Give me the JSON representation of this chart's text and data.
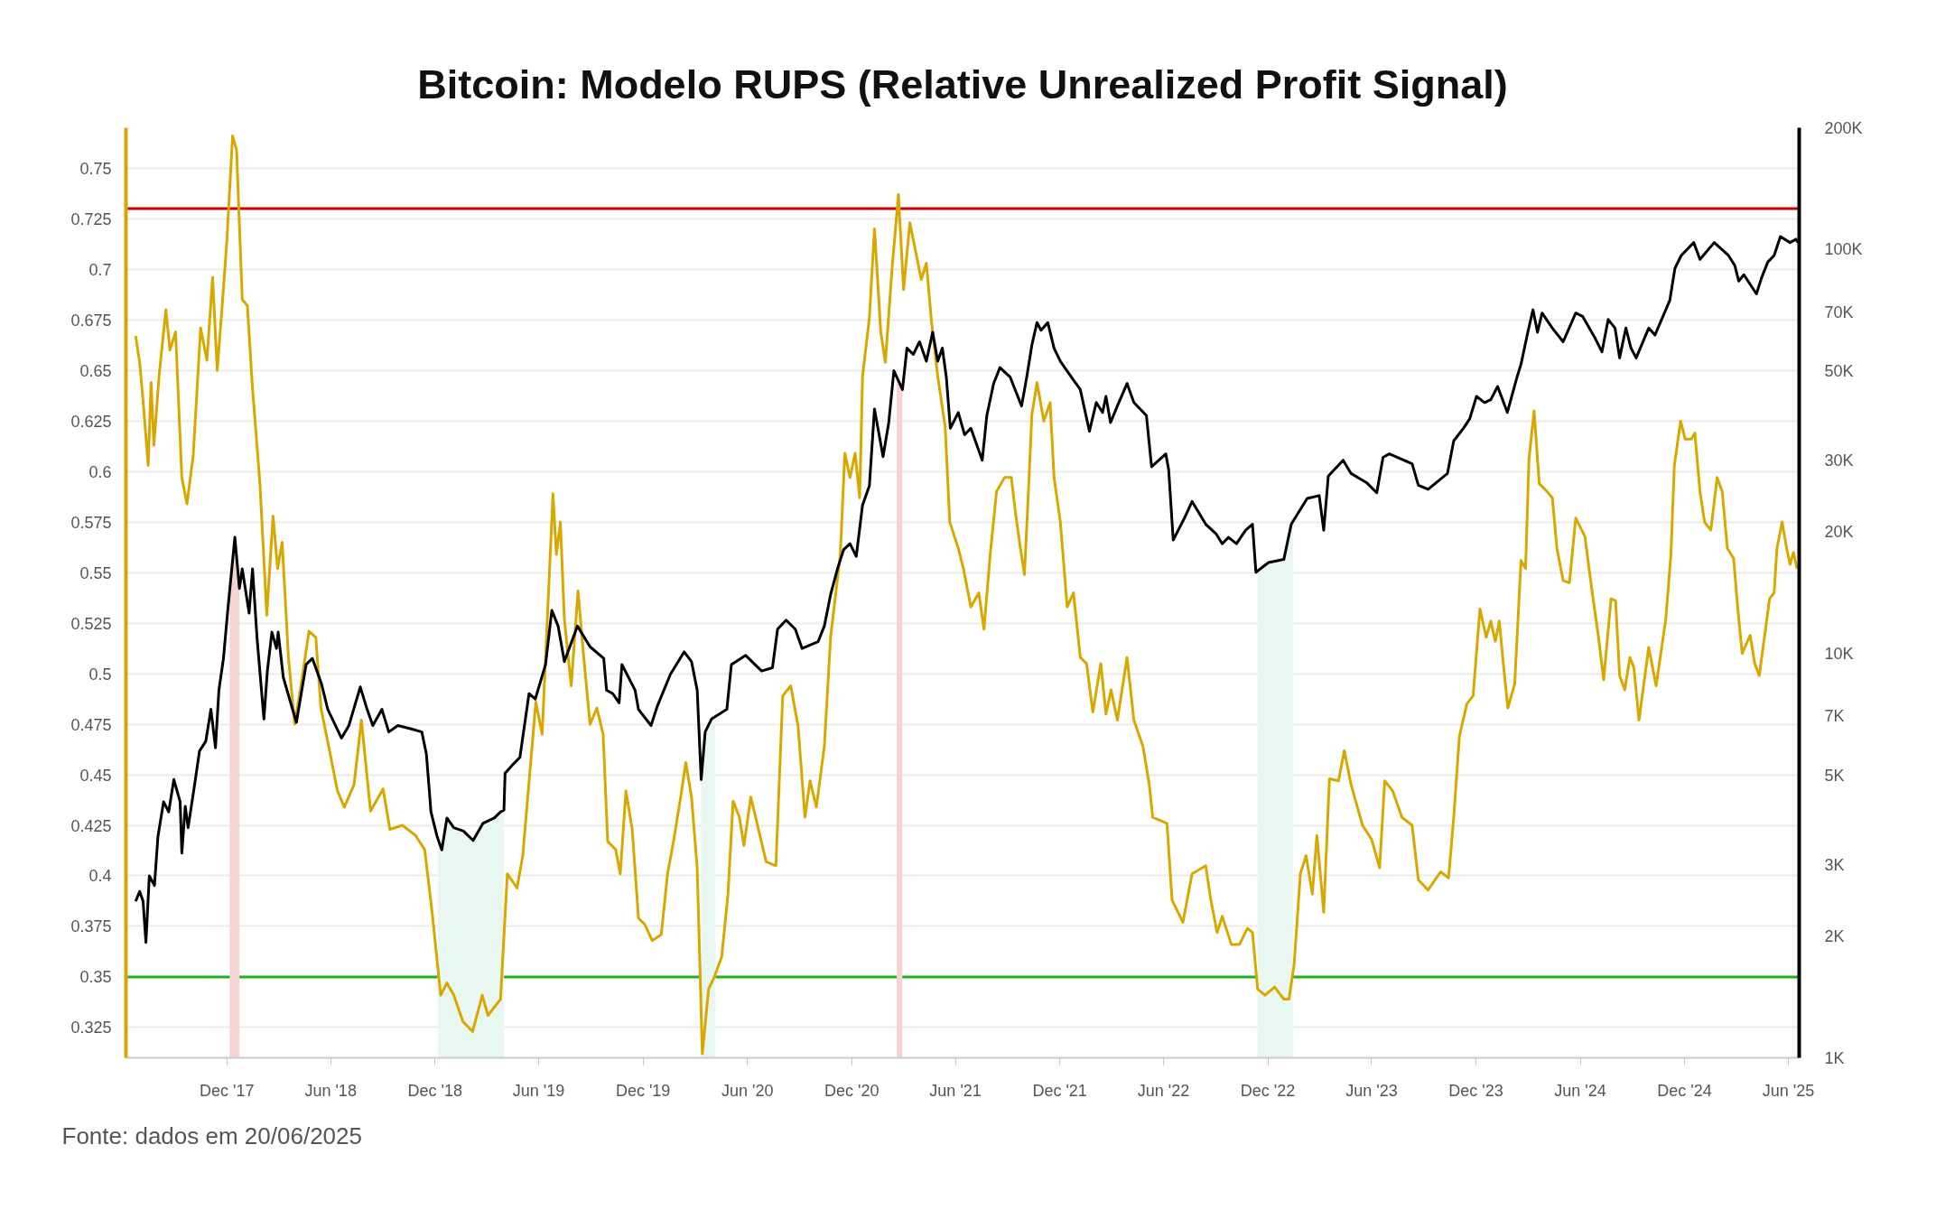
{
  "chart_data": {
    "type": "line",
    "title": "Bitcoin: Modelo RUPS (Relative Unrealized Profit Signal)",
    "annotations": [
      "Fonte: dados em 20/06/2025"
    ],
    "xlim": [
      "2017-06-07",
      "2025-06-20"
    ],
    "xticks": [
      {
        "value": "2017-12-01",
        "label": "Dec '17"
      },
      {
        "value": "2018-06-01",
        "label": "Jun '18"
      },
      {
        "value": "2018-12-01",
        "label": "Dec '18"
      },
      {
        "value": "2019-06-01",
        "label": "Jun '19"
      },
      {
        "value": "2019-12-01",
        "label": "Dec '19"
      },
      {
        "value": "2020-06-01",
        "label": "Jun '20"
      },
      {
        "value": "2020-12-01",
        "label": "Dec '20"
      },
      {
        "value": "2021-06-01",
        "label": "Jun '21"
      },
      {
        "value": "2021-12-01",
        "label": "Dec '21"
      },
      {
        "value": "2022-06-01",
        "label": "Jun '22"
      },
      {
        "value": "2022-12-01",
        "label": "Dec '22"
      },
      {
        "value": "2023-06-01",
        "label": "Jun '23"
      },
      {
        "value": "2023-12-01",
        "label": "Dec '23"
      },
      {
        "value": "2024-06-01",
        "label": "Jun '24"
      },
      {
        "value": "2024-12-01",
        "label": "Dec '24"
      },
      {
        "value": "2025-06-01",
        "label": "Jun '25"
      }
    ],
    "ylim": [
      0.31,
      0.77
    ],
    "yticks": [
      0.325,
      0.35,
      0.375,
      0.4,
      0.425,
      0.45,
      0.475,
      0.5,
      0.525,
      0.55,
      0.575,
      0.6,
      0.625,
      0.65,
      0.675,
      0.7,
      0.725,
      0.75
    ],
    "y2lim": [
      1000,
      200000
    ],
    "y2ticks": [
      {
        "value": 1000,
        "label": "1K"
      },
      {
        "value": 2000,
        "label": "2K"
      },
      {
        "value": 3000,
        "label": "3K"
      },
      {
        "value": 5000,
        "label": "5K"
      },
      {
        "value": 7000,
        "label": "7K"
      },
      {
        "value": 10000,
        "label": "10K"
      },
      {
        "value": 20000,
        "label": "20K"
      },
      {
        "value": 30000,
        "label": "30K"
      },
      {
        "value": 50000,
        "label": "50K"
      },
      {
        "value": 70000,
        "label": "70K"
      },
      {
        "value": 100000,
        "label": "100K"
      },
      {
        "value": 200000,
        "label": "200K"
      }
    ],
    "log": "y2",
    "grid": "y",
    "ref_lines": [
      {
        "axis": "y",
        "value": 0.73,
        "color": "#cc0000"
      },
      {
        "axis": "y",
        "value": 0.35,
        "color": "#22b022"
      }
    ],
    "bands": [
      {
        "axis": "x",
        "from": "2017-12-06",
        "to": "2017-12-23",
        "color": "#f5d3d3"
      },
      {
        "axis": "x",
        "from": "2018-12-06",
        "to": "2019-04-01",
        "color": "#e8f7ef"
      },
      {
        "axis": "x",
        "from": "2020-03-12",
        "to": "2020-04-06",
        "color": "#e8f7ef"
      },
      {
        "axis": "x",
        "from": "2021-02-18",
        "to": "2021-02-28",
        "color": "#f5d3d3"
      },
      {
        "axis": "x",
        "from": "2022-11-13",
        "to": "2023-01-14",
        "color": "#e8f7ef"
      }
    ],
    "series": [
      {
        "color": "#d9a800",
        "x": [
          "2017-06-24",
          "2017-07-01",
          "2017-07-07",
          "2017-07-16",
          "2017-07-21",
          "2017-07-26",
          "2017-08-04",
          "2017-08-16",
          "2017-08-23",
          "2017-09-02",
          "2017-09-13",
          "2017-09-22",
          "2017-10-03",
          "2017-10-16",
          "2017-10-27",
          "2017-11-06",
          "2017-11-14",
          "2017-11-22",
          "2017-12-01",
          "2017-12-11",
          "2017-12-18",
          "2017-12-28",
          "2018-01-06",
          "2018-01-15",
          "2018-01-28",
          "2018-02-09",
          "2018-02-20",
          "2018-02-28",
          "2018-03-08",
          "2018-03-19",
          "2018-03-30",
          "2018-04-11",
          "2018-04-24",
          "2018-05-06",
          "2018-05-15",
          "2018-05-30",
          "2018-06-13",
          "2018-06-25",
          "2018-07-12",
          "2018-07-25",
          "2018-08-10",
          "2018-09-01",
          "2018-09-13",
          "2018-10-05",
          "2018-10-28",
          "2018-11-13",
          "2018-11-26",
          "2018-12-11",
          "2018-12-22",
          "2019-01-03",
          "2019-01-19",
          "2019-02-05",
          "2019-02-22",
          "2019-03-04",
          "2019-03-26",
          "2019-04-07",
          "2019-04-24",
          "2019-05-04",
          "2019-05-27",
          "2019-06-07",
          "2019-06-26",
          "2019-07-02",
          "2019-07-09",
          "2019-07-16",
          "2019-07-28",
          "2019-08-09",
          "2019-08-19",
          "2019-08-30",
          "2019-09-11",
          "2019-09-22",
          "2019-09-30",
          "2019-10-14",
          "2019-10-22",
          "2019-11-01",
          "2019-11-12",
          "2019-11-23",
          "2019-12-04",
          "2019-12-17",
          "2020-01-02",
          "2020-01-13",
          "2020-01-24",
          "2020-02-05",
          "2020-02-14",
          "2020-02-24",
          "2020-03-05",
          "2020-03-14",
          "2020-03-25",
          "2020-04-04",
          "2020-04-17",
          "2020-04-28",
          "2020-05-07",
          "2020-05-18",
          "2020-05-26",
          "2020-06-07",
          "2020-06-23",
          "2020-07-04",
          "2020-07-21",
          "2020-08-02",
          "2020-08-16",
          "2020-08-29",
          "2020-09-10",
          "2020-09-19",
          "2020-09-30",
          "2020-10-14",
          "2020-10-25",
          "2020-11-11",
          "2020-11-19",
          "2020-11-28",
          "2020-12-07",
          "2020-12-15",
          "2020-12-20",
          "2021-01-01",
          "2021-01-10",
          "2021-01-21",
          "2021-01-29",
          "2021-02-10",
          "2021-02-21",
          "2021-03-02",
          "2021-03-13",
          "2021-04-02",
          "2021-04-11",
          "2021-04-20",
          "2021-05-01",
          "2021-05-14",
          "2021-05-22",
          "2021-06-06",
          "2021-06-15",
          "2021-06-28",
          "2021-07-12",
          "2021-07-21",
          "2021-08-01",
          "2021-08-12",
          "2021-08-26",
          "2021-09-07",
          "2021-09-15",
          "2021-09-23",
          "2021-09-30",
          "2021-10-07",
          "2021-10-13",
          "2021-10-22",
          "2021-11-03",
          "2021-11-14",
          "2021-11-21",
          "2021-12-02",
          "2021-12-14",
          "2021-12-25",
          "2022-01-06",
          "2022-01-17",
          "2022-01-28",
          "2022-02-11",
          "2022-02-20",
          "2022-03-01",
          "2022-03-12",
          "2022-03-29",
          "2022-04-10",
          "2022-04-26",
          "2022-05-07",
          "2022-05-13",
          "2022-06-07",
          "2022-06-16",
          "2022-07-05",
          "2022-07-21",
          "2022-08-14",
          "2022-08-23",
          "2022-09-03",
          "2022-09-12",
          "2022-09-28",
          "2022-10-12",
          "2022-10-26",
          "2022-11-04",
          "2022-11-13",
          "2022-11-26",
          "2022-12-13",
          "2022-12-29",
          "2023-01-07",
          "2023-01-16",
          "2023-01-27",
          "2023-02-06",
          "2023-02-17",
          "2023-02-25",
          "2023-03-09",
          "2023-03-19",
          "2023-04-04",
          "2023-04-14",
          "2023-04-26",
          "2023-05-16",
          "2023-06-01",
          "2023-06-15",
          "2023-06-24",
          "2023-07-08",
          "2023-07-24",
          "2023-08-11",
          "2023-08-22",
          "2023-09-08",
          "2023-09-30",
          "2023-10-14",
          "2023-10-23",
          "2023-11-02",
          "2023-11-15",
          "2023-11-26",
          "2023-12-08",
          "2023-12-19",
          "2023-12-27",
          "2024-01-04",
          "2024-01-11",
          "2024-01-19",
          "2024-01-26",
          "2024-02-07",
          "2024-02-18",
          "2024-02-26",
          "2024-03-03",
          "2024-03-12",
          "2024-03-21",
          "2024-04-04",
          "2024-04-13",
          "2024-04-21",
          "2024-05-02",
          "2024-05-13",
          "2024-05-24",
          "2024-06-09",
          "2024-06-22",
          "2024-07-03",
          "2024-07-12",
          "2024-07-25",
          "2024-08-02",
          "2024-08-09",
          "2024-08-18",
          "2024-08-27",
          "2024-09-03",
          "2024-09-12",
          "2024-09-29",
          "2024-10-12",
          "2024-10-29",
          "2024-11-07",
          "2024-11-13",
          "2024-11-24",
          "2024-12-02",
          "2024-12-13",
          "2024-12-19",
          "2024-12-28",
          "2025-01-05",
          "2025-01-16",
          "2025-01-27",
          "2025-02-05",
          "2025-02-14",
          "2025-02-25",
          "2025-03-04",
          "2025-03-12",
          "2025-03-26",
          "2025-04-03",
          "2025-04-11",
          "2025-04-29",
          "2025-05-07",
          "2025-05-12",
          "2025-05-21",
          "2025-05-29",
          "2025-06-04",
          "2025-06-10",
          "2025-06-16"
        ],
        "values": [
          0.667,
          0.654,
          0.635,
          0.603,
          0.644,
          0.613,
          0.647,
          0.68,
          0.66,
          0.669,
          0.597,
          0.584,
          0.608,
          0.671,
          0.655,
          0.696,
          0.65,
          0.679,
          0.714,
          0.766,
          0.759,
          0.685,
          0.682,
          0.641,
          0.594,
          0.529,
          0.578,
          0.552,
          0.565,
          0.508,
          0.475,
          0.496,
          0.521,
          0.518,
          0.483,
          0.462,
          0.442,
          0.434,
          0.445,
          0.477,
          0.432,
          0.443,
          0.423,
          0.425,
          0.42,
          0.413,
          0.382,
          0.341,
          0.347,
          0.341,
          0.328,
          0.323,
          0.341,
          0.331,
          0.339,
          0.401,
          0.394,
          0.41,
          0.486,
          0.47,
          0.589,
          0.559,
          0.575,
          0.527,
          0.494,
          0.541,
          0.508,
          0.475,
          0.483,
          0.47,
          0.417,
          0.413,
          0.401,
          0.442,
          0.423,
          0.379,
          0.376,
          0.368,
          0.371,
          0.401,
          0.418,
          0.439,
          0.456,
          0.439,
          0.404,
          0.312,
          0.344,
          0.35,
          0.36,
          0.391,
          0.437,
          0.429,
          0.415,
          0.439,
          0.42,
          0.407,
          0.405,
          0.489,
          0.494,
          0.474,
          0.429,
          0.447,
          0.434,
          0.464,
          0.518,
          0.559,
          0.609,
          0.597,
          0.609,
          0.587,
          0.647,
          0.676,
          0.72,
          0.669,
          0.654,
          0.701,
          0.737,
          0.69,
          0.723,
          0.695,
          0.703,
          0.674,
          0.647,
          0.622,
          0.575,
          0.562,
          0.552,
          0.533,
          0.54,
          0.522,
          0.559,
          0.59,
          0.597,
          0.597,
          0.578,
          0.562,
          0.549,
          0.59,
          0.628,
          0.644,
          0.625,
          0.634,
          0.597,
          0.575,
          0.533,
          0.54,
          0.508,
          0.505,
          0.481,
          0.505,
          0.48,
          0.492,
          0.477,
          0.508,
          0.477,
          0.464,
          0.445,
          0.429,
          0.426,
          0.388,
          0.377,
          0.401,
          0.405,
          0.388,
          0.372,
          0.38,
          0.366,
          0.366,
          0.374,
          0.372,
          0.344,
          0.341,
          0.345,
          0.339,
          0.339,
          0.356,
          0.401,
          0.41,
          0.391,
          0.42,
          0.382,
          0.448,
          0.447,
          0.462,
          0.445,
          0.425,
          0.418,
          0.404,
          0.447,
          0.442,
          0.429,
          0.425,
          0.398,
          0.393,
          0.402,
          0.399,
          0.429,
          0.469,
          0.485,
          0.489,
          0.532,
          0.518,
          0.526,
          0.516,
          0.526,
          0.502,
          0.483,
          0.495,
          0.556,
          0.552,
          0.606,
          0.63,
          0.594,
          0.59,
          0.587,
          0.562,
          0.546,
          0.545,
          0.577,
          0.568,
          0.54,
          0.518,
          0.497,
          0.537,
          0.536,
          0.499,
          0.492,
          0.508,
          0.503,
          0.477,
          0.513,
          0.494,
          0.527,
          0.559,
          0.603,
          0.625,
          0.616,
          0.616,
          0.619,
          0.59,
          0.575,
          0.571,
          0.597,
          0.59,
          0.562,
          0.557,
          0.533,
          0.51,
          0.519,
          0.505,
          0.499,
          0.537,
          0.54,
          0.562,
          0.575,
          0.562,
          0.554,
          0.56,
          0.552
        ]
      },
      {
        "color": "#000000",
        "axis": "y2",
        "x": [
          "2017-06-24",
          "2017-07-01",
          "2017-07-07",
          "2017-07-12",
          "2017-07-18",
          "2017-07-27",
          "2017-08-02",
          "2017-08-12",
          "2017-08-21",
          "2017-08-30",
          "2017-09-10",
          "2017-09-13",
          "2017-09-19",
          "2017-09-24",
          "2017-10-05",
          "2017-10-14",
          "2017-10-25",
          "2017-11-03",
          "2017-11-11",
          "2017-11-17",
          "2017-11-25",
          "2017-12-03",
          "2017-12-15",
          "2017-12-23",
          "2017-12-28",
          "2018-01-09",
          "2018-01-15",
          "2018-01-23",
          "2018-02-04",
          "2018-02-10",
          "2018-02-18",
          "2018-02-26",
          "2018-03-01",
          "2018-03-10",
          "2018-03-23",
          "2018-04-02",
          "2018-04-19",
          "2018-04-30",
          "2018-05-16",
          "2018-05-27",
          "2018-06-20",
          "2018-07-03",
          "2018-07-23",
          "2018-08-04",
          "2018-08-14",
          "2018-08-30",
          "2018-09-11",
          "2018-09-27",
          "2018-10-19",
          "2018-11-08",
          "2018-11-16",
          "2018-11-24",
          "2018-12-05",
          "2018-12-13",
          "2018-12-22",
          "2019-01-03",
          "2019-01-20",
          "2019-02-06",
          "2019-02-23",
          "2019-03-15",
          "2019-03-26",
          "2019-04-01",
          "2019-04-03",
          "2019-04-18",
          "2019-04-29",
          "2019-05-15",
          "2019-05-26",
          "2019-06-13",
          "2019-06-24",
          "2019-07-05",
          "2019-07-16",
          "2019-08-08",
          "2019-08-30",
          "2019-09-23",
          "2019-09-28",
          "2019-10-09",
          "2019-10-20",
          "2019-10-25",
          "2019-11-17",
          "2019-11-23",
          "2019-12-15",
          "2019-12-26",
          "2020-01-18",
          "2020-02-11",
          "2020-02-24",
          "2020-03-05",
          "2020-03-12",
          "2020-03-19",
          "2020-03-30",
          "2020-04-26",
          "2020-05-04",
          "2020-05-29",
          "2020-06-26",
          "2020-07-15",
          "2020-07-24",
          "2020-08-08",
          "2020-08-24",
          "2020-09-05",
          "2020-10-03",
          "2020-10-14",
          "2020-10-25",
          "2020-11-06",
          "2020-11-17",
          "2020-11-28",
          "2020-12-09",
          "2020-12-20",
          "2021-01-01",
          "2021-01-10",
          "2021-01-25",
          "2021-02-04",
          "2021-02-13",
          "2021-02-28",
          "2021-03-08",
          "2021-03-19",
          "2021-03-30",
          "2021-04-11",
          "2021-04-22",
          "2021-05-01",
          "2021-05-09",
          "2021-05-16",
          "2021-05-23",
          "2021-06-06",
          "2021-06-17",
          "2021-06-28",
          "2021-07-18",
          "2021-07-26",
          "2021-08-07",
          "2021-08-18",
          "2021-09-05",
          "2021-09-25",
          "2021-10-04",
          "2021-10-13",
          "2021-10-22",
          "2021-10-29",
          "2021-11-10",
          "2021-11-21",
          "2021-12-02",
          "2021-12-25",
          "2022-01-06",
          "2022-01-22",
          "2022-02-03",
          "2022-02-14",
          "2022-02-20",
          "2022-02-28",
          "2022-03-12",
          "2022-03-29",
          "2022-04-10",
          "2022-05-02",
          "2022-05-11",
          "2022-06-05",
          "2022-06-10",
          "2022-06-18",
          "2022-07-08",
          "2022-07-21",
          "2022-08-14",
          "2022-09-01",
          "2022-09-12",
          "2022-09-23",
          "2022-10-07",
          "2022-10-23",
          "2022-11-04",
          "2022-11-10",
          "2022-12-02",
          "2022-12-29",
          "2023-01-11",
          "2023-02-08",
          "2023-03-01",
          "2023-03-09",
          "2023-03-17",
          "2023-04-12",
          "2023-04-26",
          "2023-05-23",
          "2023-06-10",
          "2023-06-21",
          "2023-07-02",
          "2023-08-11",
          "2023-08-22",
          "2023-09-08",
          "2023-10-12",
          "2023-10-23",
          "2023-11-09",
          "2023-11-20",
          "2023-12-02",
          "2023-12-16",
          "2023-12-27",
          "2024-01-08",
          "2024-01-25",
          "2024-02-11",
          "2024-02-18",
          "2024-03-01",
          "2024-03-10",
          "2024-03-18",
          "2024-03-26",
          "2024-04-13",
          "2024-05-02",
          "2024-05-24",
          "2024-06-05",
          "2024-06-27",
          "2024-07-09",
          "2024-07-20",
          "2024-08-01",
          "2024-08-09",
          "2024-08-20",
          "2024-08-29",
          "2024-09-07",
          "2024-09-29",
          "2024-10-10",
          "2024-10-24",
          "2024-11-05",
          "2024-11-14",
          "2024-11-25",
          "2024-12-17",
          "2024-12-28",
          "2025-01-22",
          "2025-02-16",
          "2025-02-27",
          "2025-03-06",
          "2025-03-15",
          "2025-04-06",
          "2025-04-15",
          "2025-04-26",
          "2025-05-07",
          "2025-05-18",
          "2025-06-04",
          "2025-06-14",
          "2025-06-18"
        ],
        "values": [
          2440,
          2580,
          2440,
          1930,
          2820,
          2670,
          3520,
          4300,
          4060,
          4880,
          4300,
          3210,
          4190,
          3710,
          4700,
          5740,
          6070,
          7280,
          5850,
          8120,
          9730,
          13000,
          19400,
          14500,
          16200,
          12600,
          16200,
          10900,
          6890,
          9060,
          11300,
          10300,
          11300,
          8730,
          7550,
          6760,
          9400,
          9730,
          8420,
          7280,
          6180,
          6640,
          8270,
          7280,
          6640,
          7280,
          6400,
          6640,
          6520,
          6400,
          5640,
          4060,
          3520,
          3270,
          3920,
          3710,
          3640,
          3450,
          3800,
          3920,
          4060,
          4100,
          5060,
          5340,
          5540,
          7960,
          7720,
          9400,
          12800,
          11700,
          9560,
          11700,
          10400,
          9730,
          8120,
          7960,
          7550,
          9400,
          8120,
          7280,
          6640,
          7410,
          8890,
          10100,
          9560,
          8120,
          4880,
          6400,
          6890,
          7280,
          9400,
          9900,
          9060,
          9230,
          11500,
          12100,
          11500,
          10300,
          10700,
          11700,
          14000,
          16200,
          18100,
          18700,
          17400,
          23300,
          26000,
          40300,
          30700,
          37300,
          50100,
          45000,
          57000,
          55000,
          59100,
          52900,
          62400,
          52900,
          57000,
          48300,
          36100,
          39500,
          34800,
          36100,
          30100,
          38800,
          46600,
          51000,
          48300,
          41000,
          48300,
          58000,
          65900,
          63100,
          65900,
          57000,
          52900,
          47500,
          45000,
          35500,
          41800,
          39500,
          43300,
          37300,
          41000,
          46600,
          41800,
          38800,
          29000,
          31200,
          28500,
          19100,
          21700,
          23800,
          20900,
          19800,
          18700,
          19400,
          18700,
          20200,
          20900,
          15900,
          16800,
          17100,
          20900,
          24200,
          24600,
          20200,
          27500,
          30100,
          27900,
          26500,
          25000,
          30600,
          31200,
          29500,
          26100,
          25500,
          27900,
          33600,
          36100,
          38100,
          43300,
          41800,
          42500,
          45800,
          39500,
          48300,
          52000,
          62400,
          70900,
          62400,
          69600,
          63900,
          59100,
          69600,
          68300,
          60300,
          55800,
          67100,
          63900,
          53900,
          63900,
          57000,
          53900,
          63900,
          61400,
          68300,
          74800,
          89800,
          96600,
          104000,
          94500,
          104000,
          96600,
          91300,
          83500,
          86600,
          77600,
          85100,
          93100,
          96600,
          107600,
          104000,
          106000,
          104000
        ]
      }
    ]
  }
}
